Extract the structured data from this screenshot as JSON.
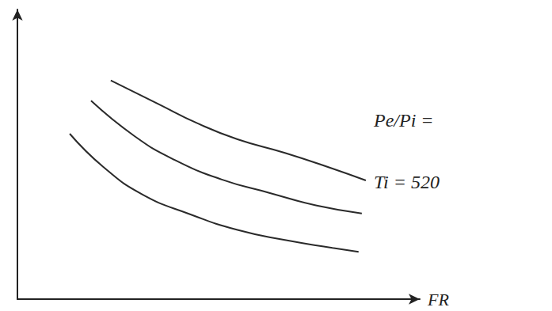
{
  "chart_data": {
    "type": "line",
    "x_label": "FR",
    "annotations": [
      "Pe/Pi =",
      "Ti = 520"
    ],
    "xlim": [
      0,
      100
    ],
    "ylim": [
      0,
      100
    ],
    "tick_labels": false,
    "grid": false,
    "series": [
      {
        "color": "#2a2a2a",
        "x": [
          23.2,
          35.0,
          44.9,
          54.7,
          66.5,
          78.3,
          86.6
        ],
        "values": [
          75.5,
          67.4,
          60.6,
          55.2,
          50.5,
          45.1,
          41.0
        ]
      },
      {
        "color": "#2a2a2a",
        "x": [
          18.3,
          29.1,
          39.0,
          50.8,
          62.6,
          74.4,
          85.6
        ],
        "values": [
          68.5,
          56.3,
          48.1,
          41.3,
          36.7,
          32.3,
          29.6
        ]
      },
      {
        "color": "#2a2a2a",
        "x": [
          13.0,
          21.3,
          31.1,
          42.9,
          54.7,
          66.5,
          78.3,
          84.8
        ],
        "values": [
          57.1,
          45.7,
          36.1,
          29.3,
          23.9,
          20.4,
          17.7,
          16.3
        ]
      }
    ]
  }
}
